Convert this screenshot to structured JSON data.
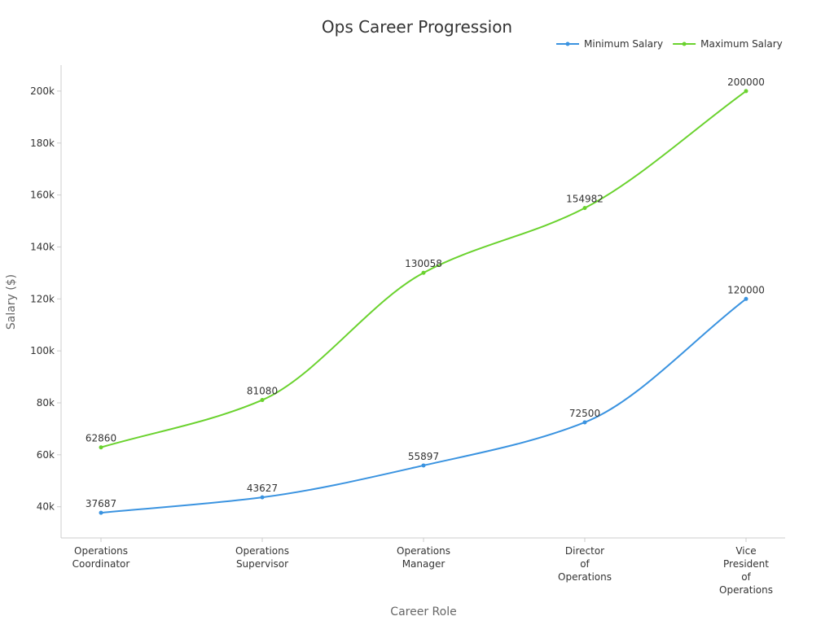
{
  "chart_data": {
    "type": "line",
    "title": "Ops Career Progression",
    "xlabel": "Career Role",
    "ylabel": "Salary ($)",
    "categories": [
      [
        "Operations",
        "Coordinator"
      ],
      [
        "Operations",
        "Supervisor"
      ],
      [
        "Operations",
        "Manager"
      ],
      [
        "Director",
        "of",
        "Operations"
      ],
      [
        "Vice",
        "President",
        "of",
        "Operations"
      ]
    ],
    "ylim": [
      28000,
      210000
    ],
    "yticks": [
      40000,
      60000,
      80000,
      100000,
      120000,
      140000,
      160000,
      180000,
      200000
    ],
    "ytick_labels": [
      "40k",
      "60k",
      "80k",
      "100k",
      "120k",
      "140k",
      "160k",
      "180k",
      "200k"
    ],
    "legend_position": "top-right",
    "grid": false,
    "series": [
      {
        "name": "Minimum Salary",
        "color": "#3a93e0",
        "values": [
          37687,
          43627,
          55897,
          72500,
          120000
        ],
        "labels": [
          "37687",
          "43627",
          "55897",
          "72500",
          "120000"
        ]
      },
      {
        "name": "Maximum Salary",
        "color": "#6ad22e",
        "values": [
          62860,
          81080,
          130058,
          154982,
          200000
        ],
        "labels": [
          "62860",
          "81080",
          "130058",
          "154982",
          "200000"
        ]
      }
    ]
  }
}
